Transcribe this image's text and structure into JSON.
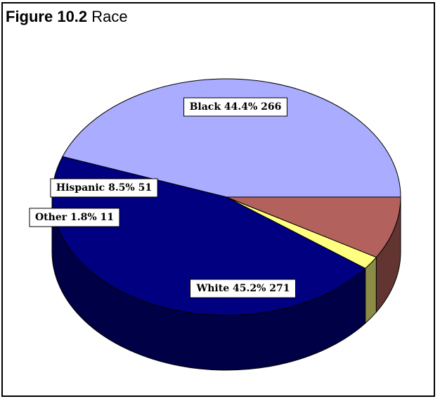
{
  "figure": {
    "number": "Figure 10.2",
    "title": "Race"
  },
  "chart_data": {
    "type": "pie",
    "title": "Race",
    "style": "3d",
    "slices": [
      {
        "name": "Black",
        "percent": "44.4%",
        "count": 266,
        "value": 44.4,
        "color": "#a9acff"
      },
      {
        "name": "White",
        "percent": "45.2%",
        "count": 271,
        "value": 45.2,
        "color": "#000080"
      },
      {
        "name": "Other",
        "percent": "1.8%",
        "count": 11,
        "value": 1.8,
        "color": "#ffff80"
      },
      {
        "name": "Hispanic",
        "percent": "8.5%",
        "count": 51,
        "value": 8.5,
        "color": "#b3615d"
      }
    ],
    "labels": [
      "Black 44.4% 266",
      "White 45.2% 271",
      "Other 1.8% 11",
      "Hispanic 8.5% 51"
    ]
  }
}
